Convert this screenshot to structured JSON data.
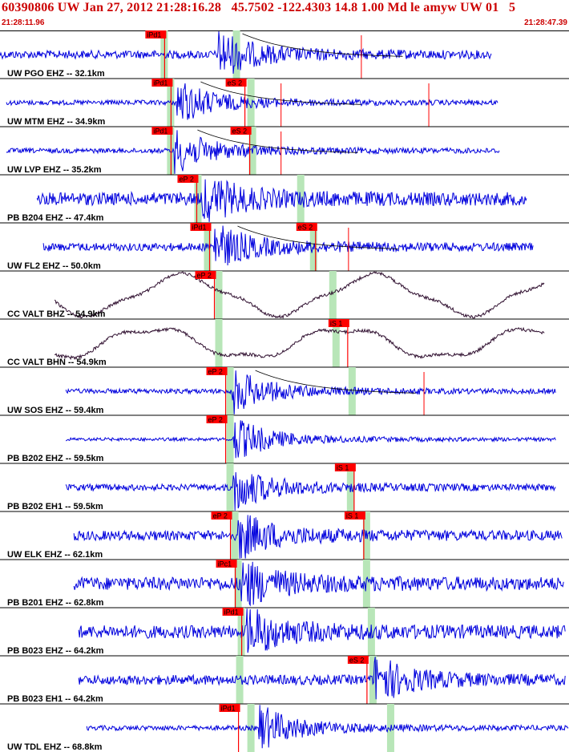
{
  "header": {
    "title": "60390806 UW Jan 27, 2012 21:28:16.28   45.7502 -122.4303 14.8 1.00 Md le amyw UW 01   5",
    "time_start": "21:28:11.96",
    "time_end": "21:28:47.39"
  },
  "colors": {
    "trace": "#0000dd",
    "trace_horizontal": "#301030",
    "pick_bg": "#ff0000",
    "window_green": "#b8e6b8",
    "header_text": "#cc0000",
    "separator": "#000000"
  },
  "time_range_s": [
    0,
    35.43
  ],
  "traces": [
    {
      "label": "UW PGO EHZ -- 32.1km",
      "color": "trace",
      "start_s": 0.0,
      "end_s": 30.6,
      "amp": 5,
      "picks": [
        {
          "label": "iPd1",
          "t_s": 10.2
        }
      ],
      "windows": [
        10.2,
        14.7
      ],
      "big_event_s": 13.6,
      "decay_curve": true,
      "extra_lines_s": [
        22.5
      ]
    },
    {
      "label": "UW MTM EHZ -- 34.9km",
      "color": "trace",
      "start_s": 0.4,
      "end_s": 31.0,
      "amp": 3,
      "picks": [
        {
          "label": "iPd1",
          "t_s": 10.6
        },
        {
          "label": "eS 2",
          "t_s": 15.2
        }
      ],
      "windows": [
        10.6,
        15.6
      ],
      "big_event_s": 11.0,
      "decay_curve": true,
      "extra_lines_s": [
        17.5,
        26.7
      ]
    },
    {
      "label": "UW LVP EHZ -- 35.2km",
      "color": "trace",
      "start_s": 0.4,
      "end_s": 31.1,
      "amp": 3,
      "picks": [
        {
          "label": "iPd1",
          "t_s": 10.6
        },
        {
          "label": "eS 2",
          "t_s": 15.5
        }
      ],
      "windows": [
        10.6,
        15.7
      ],
      "big_event_s": 10.8,
      "decay_curve": true,
      "extra_lines_s": [
        17.5
      ]
    },
    {
      "label": "PB B204 EHZ -- 47.4km",
      "color": "trace",
      "start_s": 2.3,
      "end_s": 32.8,
      "amp": 8,
      "picks": [
        {
          "label": "eP 2",
          "t_s": 12.2
        }
      ],
      "windows": [
        12.3,
        18.7
      ],
      "big_event_s": 12.6,
      "decay_curve": false,
      "extra_lines_s": []
    },
    {
      "label": "UW FL2 EHZ -- 50.0km",
      "color": "trace",
      "start_s": 2.7,
      "end_s": 33.2,
      "amp": 5,
      "picks": [
        {
          "label": "iPd1",
          "t_s": 13.0
        },
        {
          "label": "eS 2",
          "t_s": 19.6
        }
      ],
      "windows": [
        12.9,
        19.5
      ],
      "big_event_s": 13.3,
      "decay_curve": true,
      "extra_lines_s": [
        21.7
      ]
    },
    {
      "label": "CC VALT BHZ -- 54.9km",
      "color": "trace_horizontal",
      "start_s": 3.4,
      "end_s": 33.9,
      "amp": 26,
      "picks": [
        {
          "label": "eP 2",
          "t_s": 13.3
        }
      ],
      "windows": [
        13.6,
        20.7
      ],
      "big_event_s": -1,
      "decay_curve": false,
      "extra_lines_s": []
    },
    {
      "label": "CC VALT BHN -- 54.9km",
      "color": "trace_horizontal",
      "start_s": 3.4,
      "end_s": 33.9,
      "amp": 20,
      "picks": [
        {
          "label": "iS 1",
          "t_s": 21.6
        }
      ],
      "windows": [
        13.6,
        20.9
      ],
      "big_event_s": -1,
      "decay_curve": false,
      "extra_lines_s": []
    },
    {
      "label": "UW SOS EHZ -- 59.4km",
      "color": "trace",
      "start_s": 4.1,
      "end_s": 34.6,
      "amp": 3,
      "picks": [
        {
          "label": "eP 2",
          "t_s": 14.0
        }
      ],
      "windows": [
        14.3,
        21.9
      ],
      "big_event_s": 14.4,
      "decay_curve": true,
      "extra_lines_s": [
        26.4
      ]
    },
    {
      "label": "PB B202 EHZ -- 59.5km",
      "color": "trace",
      "start_s": 4.1,
      "end_s": 34.6,
      "amp": 2,
      "picks": [
        {
          "label": "eP 2",
          "t_s": 14.0
        }
      ],
      "windows": [
        14.3
      ],
      "big_event_s": 14.5,
      "decay_curve": false,
      "extra_lines_s": []
    },
    {
      "label": "PB B202 EH1 -- 59.5km",
      "color": "trace",
      "start_s": 4.1,
      "end_s": 34.6,
      "amp": 4,
      "picks": [
        {
          "label": "iS 1",
          "t_s": 22.0
        }
      ],
      "windows": [
        14.3,
        21.8
      ],
      "big_event_s": 14.5,
      "decay_curve": false,
      "extra_lines_s": []
    },
    {
      "label": "UW ELK EHZ -- 62.1km",
      "color": "trace",
      "start_s": 4.6,
      "end_s": 35.0,
      "amp": 6,
      "picks": [
        {
          "label": "eP 2",
          "t_s": 14.3
        },
        {
          "label": "iS 1",
          "t_s": 22.6
        }
      ],
      "windows": [
        14.6,
        22.8
      ],
      "big_event_s": 14.8,
      "decay_curve": false,
      "extra_lines_s": []
    },
    {
      "label": "PB B201 EHZ -- 62.8km",
      "color": "trace",
      "start_s": 4.6,
      "end_s": 35.1,
      "amp": 8,
      "picks": [
        {
          "label": "iPc1",
          "t_s": 14.6
        }
      ],
      "windows": [
        14.8,
        22.8
      ],
      "big_event_s": 15.0,
      "decay_curve": false,
      "extra_lines_s": []
    },
    {
      "label": "PB B023 EHZ -- 64.2km",
      "color": "trace",
      "start_s": 4.9,
      "end_s": 35.2,
      "amp": 8,
      "picks": [
        {
          "label": "iPd1",
          "t_s": 15.0
        }
      ],
      "windows": [
        15.0,
        23.1
      ],
      "big_event_s": 15.3,
      "decay_curve": false,
      "extra_lines_s": []
    },
    {
      "label": "PB B023 EH1 -- 64.2km",
      "color": "trace",
      "start_s": 4.9,
      "end_s": 35.2,
      "amp": 6,
      "picks": [
        {
          "label": "eS 2",
          "t_s": 22.8
        }
      ],
      "windows": [
        14.9,
        23.2
      ],
      "big_event_s": 23.3,
      "decay_curve": false,
      "extra_lines_s": []
    },
    {
      "label": "UW TDL EHZ -- 68.8km",
      "color": "trace",
      "start_s": 5.4,
      "end_s": 35.4,
      "amp": 3,
      "picks": [
        {
          "label": "iPd1",
          "t_s": 14.8
        }
      ],
      "windows": [
        15.6,
        24.3
      ],
      "big_event_s": 16.1,
      "decay_curve": false,
      "extra_lines_s": []
    }
  ]
}
